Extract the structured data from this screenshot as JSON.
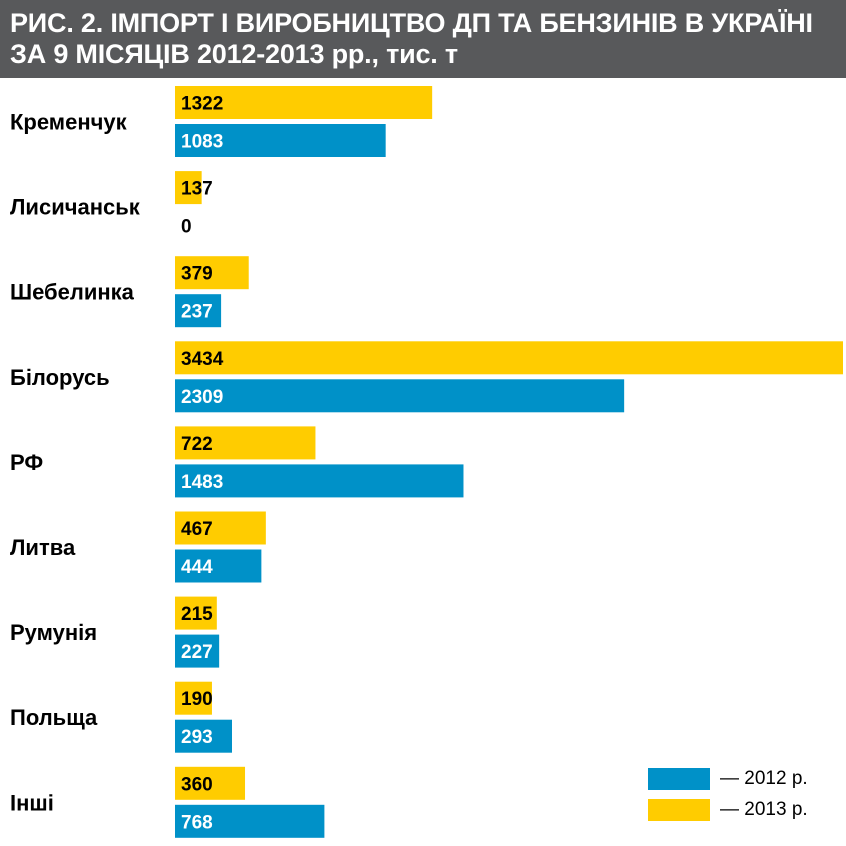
{
  "title": {
    "line1": "РИС. 2. ІМПОРТ І ВИРОБНИЦТВО ДП ТА БЕНЗИНІВ В УКРАЇНІ",
    "line2": "ЗА 9 МІСЯЦІВ 2012-2013 рр., тис. т"
  },
  "colors": {
    "title_background": "#58595b",
    "series_2013": "#ffcc00",
    "series_2012": "#0091c8"
  },
  "legend": {
    "position": "bottom-right",
    "items": [
      {
        "label": "— 2012 р.",
        "color": "#0091c8"
      },
      {
        "label": "— 2013 р.",
        "color": "#ffcc00"
      }
    ]
  },
  "chart_data": {
    "type": "bar",
    "orientation": "horizontal",
    "title": "РИС. 2. ІМПОРТ І ВИРОБНИЦТВО ДП ТА БЕНЗИНІВ В УКРАЇНІ ЗА 9 МІСЯЦІВ 2012-2013 рр., тис. т",
    "categories": [
      "Кременчук",
      "Лисичанськ",
      "Шебелинка",
      "Білорусь",
      "РФ",
      "Литва",
      "Румунія",
      "Польща",
      "Інші"
    ],
    "series": [
      {
        "name": "2013 р.",
        "color": "#ffcc00",
        "values": [
          1322,
          137,
          379,
          3434,
          722,
          467,
          215,
          190,
          360
        ]
      },
      {
        "name": "2012 р.",
        "color": "#0091c8",
        "values": [
          1083,
          0,
          237,
          2309,
          1483,
          444,
          227,
          293,
          768
        ]
      }
    ],
    "xlim": [
      0,
      3434
    ],
    "grid": false,
    "data_labels": true
  }
}
